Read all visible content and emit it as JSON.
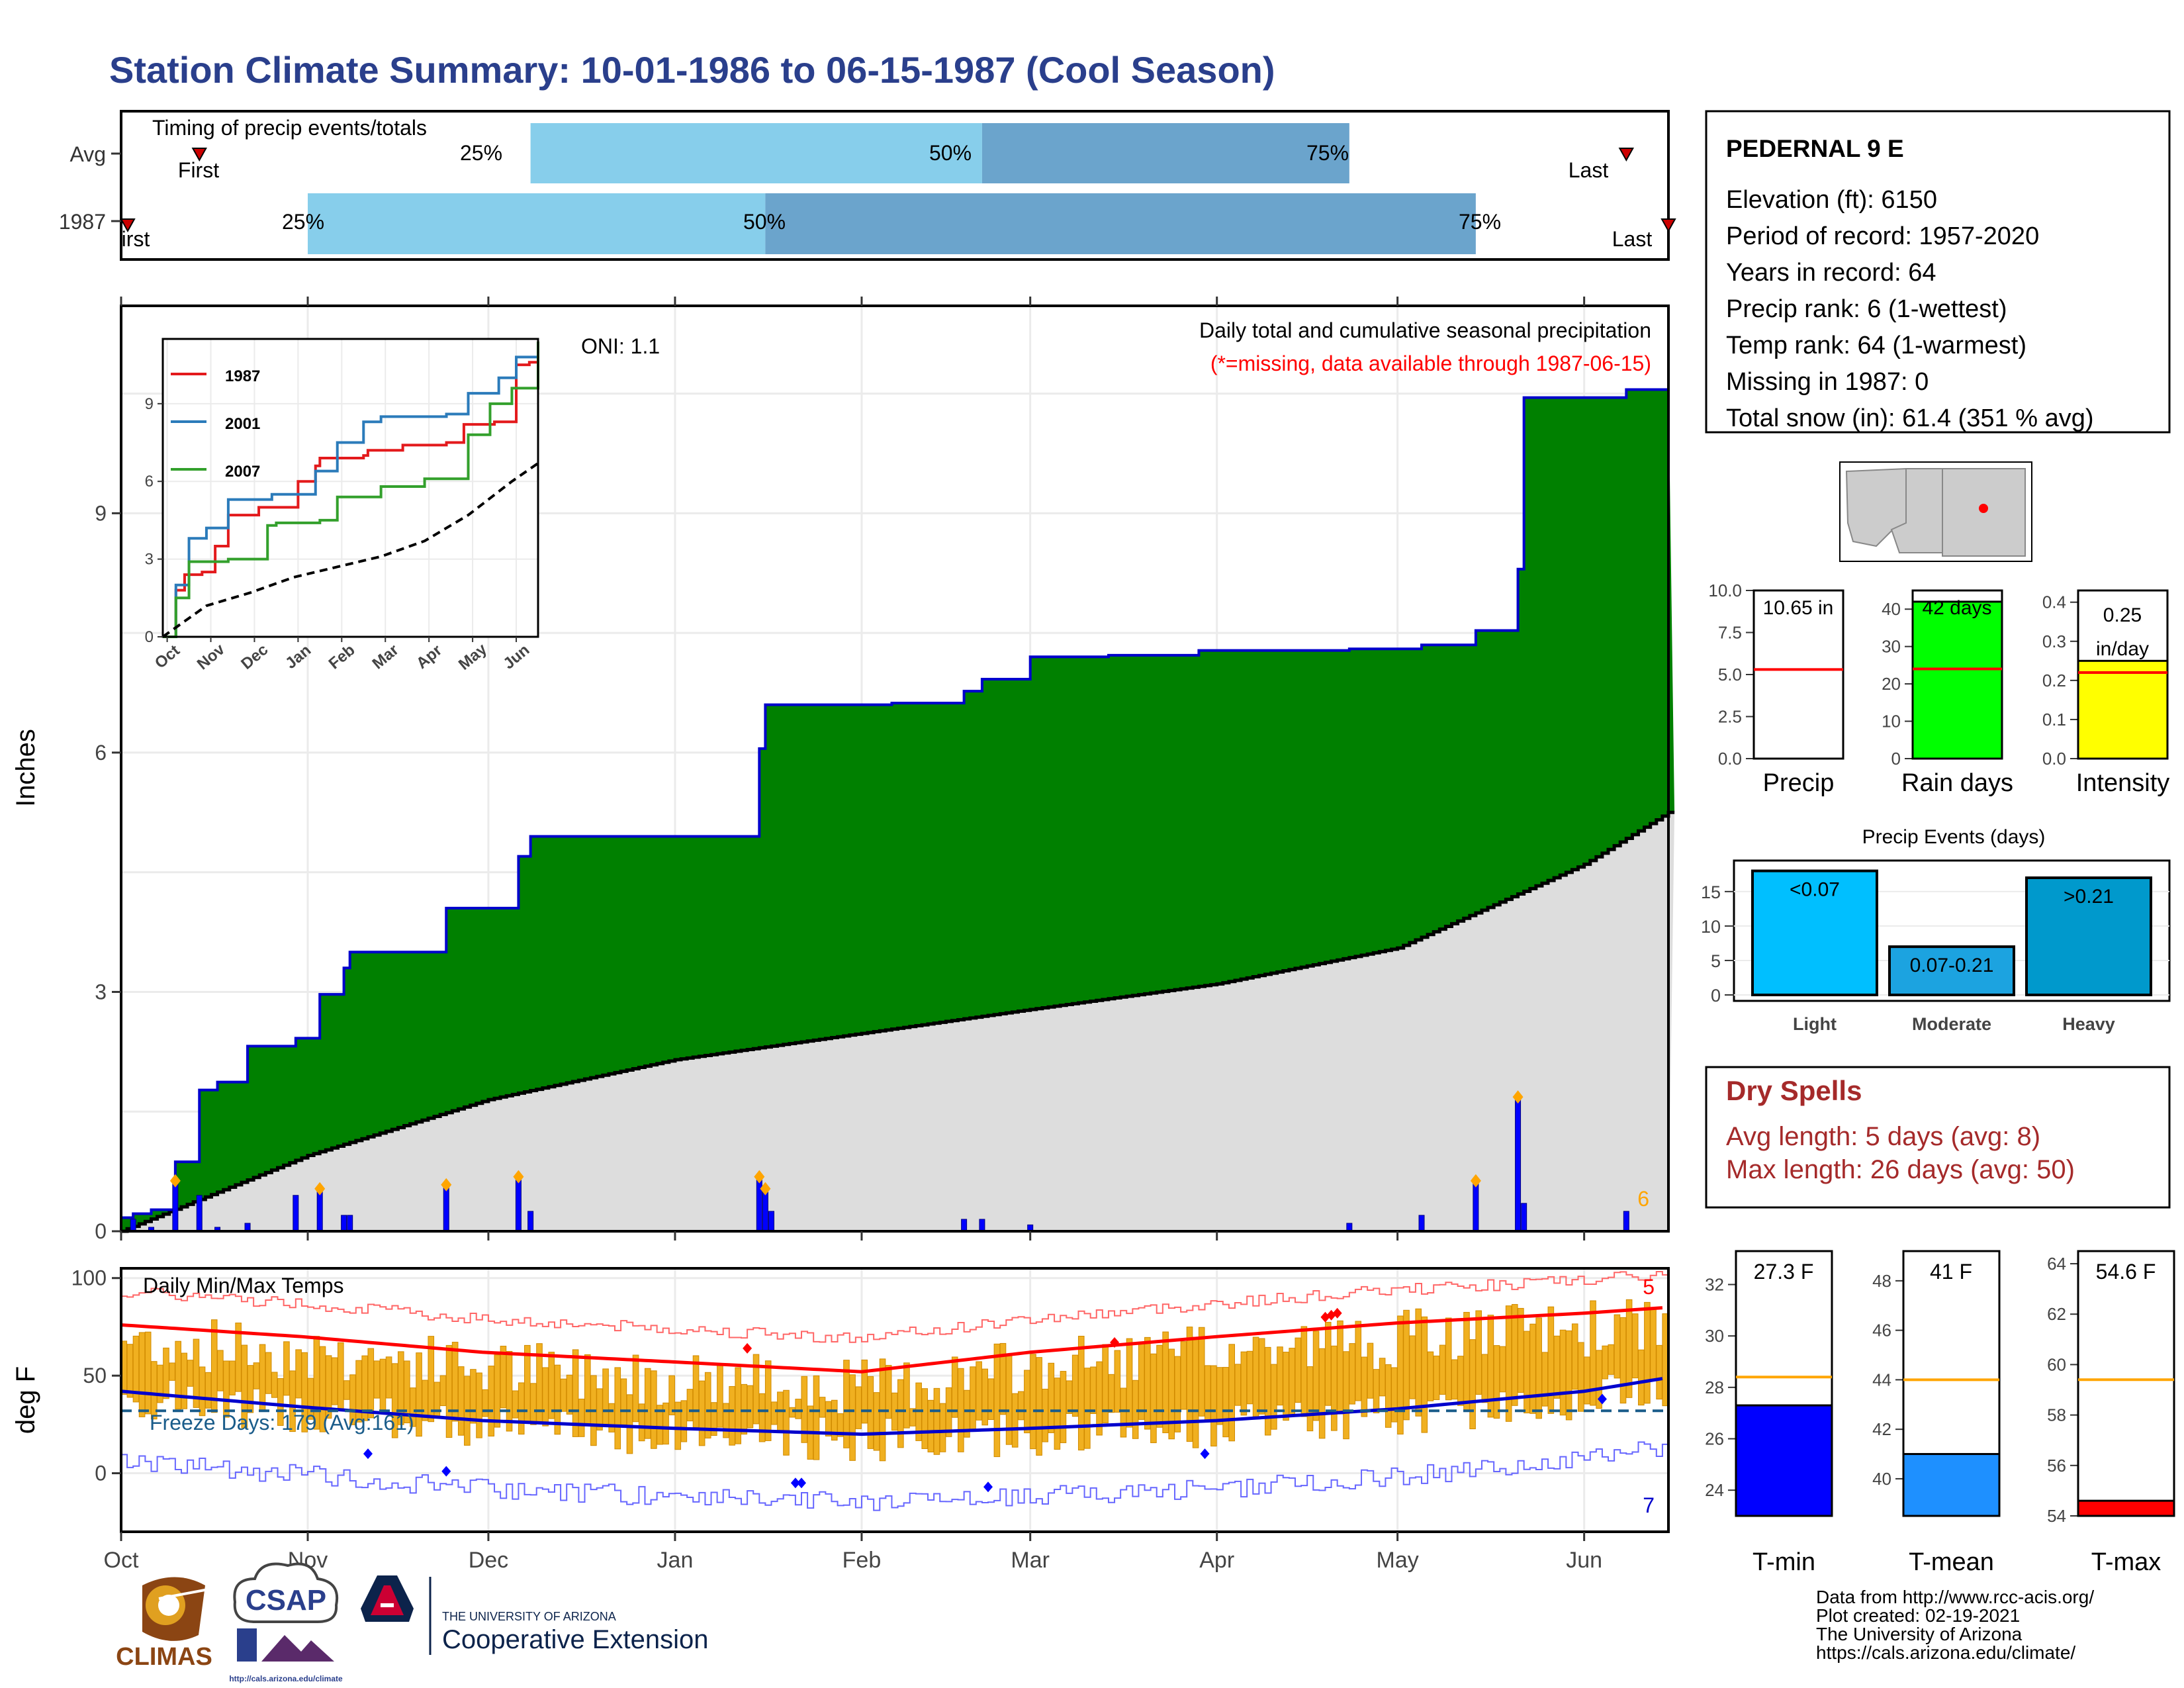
{
  "title": "Station Climate Summary: 10-01-1986 to 06-15-1987 (Cool Season)",
  "colors": {
    "title": "#2a3f8c",
    "green": "#008000",
    "blue_outline": "#0000cc",
    "climo_fill": "#dddddd",
    "light_blue": "#87ceeb",
    "steel_blue": "#6ba4cc",
    "orange_bar": "#f0b020",
    "dry_spell": "#a52a2a",
    "red": "#ff0000"
  },
  "timing": {
    "label": "Timing of precip events/totals",
    "row_labels": [
      "Avg",
      "1987"
    ],
    "avg": {
      "first_label": "First",
      "last_label": "Last",
      "first_date": "1986-10-14",
      "p25_date": "1986-12-08",
      "p50_date": "1987-02-21",
      "p75_date": "1987-04-23",
      "last_date": "1987-06-08"
    },
    "y1987": {
      "first_label": "irst",
      "last_label": "Last",
      "first_date": "1986-10-01",
      "p25_date": "1986-11-01",
      "p50_date": "1987-01-16",
      "p75_date": "1987-05-14",
      "last_date": "1987-06-15"
    },
    "pct_labels": [
      "25%",
      "50%",
      "75%"
    ]
  },
  "precip_panel": {
    "ylabel": "Inches",
    "oni_label": "ONI: 1.1",
    "caption1": "Daily total and cumulative seasonal precipitation",
    "caption2": "(*=missing, data available through 1987-06-15)",
    "corner_count": "6",
    "y_ticks": [
      "0",
      "3",
      "6",
      "9"
    ],
    "x_ticks": [
      "Oct",
      "Nov",
      "Dec",
      "Jan",
      "Feb",
      "Mar",
      "Apr",
      "May",
      "Jun"
    ]
  },
  "inset": {
    "legend": [
      "1987",
      "2001",
      "2007"
    ],
    "legend_colors": [
      "#e31a1c",
      "#2b7bba",
      "#33a02c"
    ],
    "y_ticks": [
      "0",
      "3",
      "6",
      "9"
    ],
    "x_ticks": [
      "Oct",
      "Nov",
      "Dec",
      "Jan",
      "Feb",
      "Mar",
      "Apr",
      "May",
      "Jun"
    ]
  },
  "temp_panel": {
    "ylabel": "deg F",
    "label": "Daily Min/Max Temps",
    "freeze": "Freeze Days: 179 (Avg:161)",
    "corner_top": "5",
    "corner_bottom": "7",
    "y_ticks": [
      "0",
      "50",
      "100"
    ],
    "x_ticks": [
      "Oct",
      "Nov",
      "Dec",
      "Jan",
      "Feb",
      "Mar",
      "Apr",
      "May",
      "Jun"
    ]
  },
  "station": {
    "name": "PEDERNAL 9 E",
    "lines": [
      "Elevation (ft): 6150",
      "Period of record: 1957-2020",
      "Years in record: 64",
      "Precip rank: 6 (1-wettest)",
      "Temp rank: 64 (1-warmest)",
      "Missing in 1987: 0",
      "Total snow (in): 61.4 (351 % avg)"
    ]
  },
  "mini_bars": [
    {
      "label": "Precip",
      "value_text": "10.65 in",
      "value": 10.65,
      "avg": 5.3,
      "ylim": [
        0,
        10.0
      ],
      "ticks": [
        "0.0",
        "2.5",
        "5.0",
        "7.5",
        "10.0"
      ],
      "tick_vals": [
        0,
        2.5,
        5,
        7.5,
        10
      ],
      "color": "#ffffff"
    },
    {
      "label": "Rain days",
      "value_text": "42 days",
      "value": 42,
      "avg": 24,
      "ylim": [
        0,
        45
      ],
      "ticks": [
        "0",
        "10",
        "20",
        "30",
        "40"
      ],
      "tick_vals": [
        0,
        10,
        20,
        30,
        40
      ],
      "color": "#00ff00"
    },
    {
      "label": "Intensity",
      "value_text": "0.25 in/day",
      "value_line1": "0.25",
      "value_line2": "in/day",
      "value": 0.25,
      "avg": 0.22,
      "ylim": [
        0,
        0.43
      ],
      "ticks": [
        "0.0",
        "0.1",
        "0.2",
        "0.3",
        "0.4"
      ],
      "tick_vals": [
        0,
        0.1,
        0.2,
        0.3,
        0.4
      ],
      "color": "#ffff00"
    }
  ],
  "events": {
    "title": "Precip Events (days)",
    "categories": [
      "Light",
      "Moderate",
      "Heavy"
    ],
    "bar_labels": [
      "<0.07",
      "0.07-0.21",
      ">0.21"
    ],
    "values": [
      18,
      7,
      17
    ],
    "colors": [
      "#00bfff",
      "#1ca3e0",
      "#0099cc"
    ],
    "ticks": [
      "0",
      "5",
      "10",
      "15"
    ]
  },
  "dry_spells": {
    "title": "Dry Spells",
    "avg_line": "Avg length: 5 days (avg: 8)",
    "max_line": "Max length: 26 days (avg: 50)"
  },
  "temp_bars": [
    {
      "label": "T-min",
      "value_text": "27.3 F",
      "value": 27.3,
      "avg": 28.4,
      "ylim": [
        23,
        33.3
      ],
      "ticks": [
        "24",
        "26",
        "28",
        "30",
        "32"
      ],
      "tick_vals": [
        24,
        26,
        28,
        30,
        32
      ],
      "color": "#0000ff"
    },
    {
      "label": "T-mean",
      "value_text": "41 F",
      "value": 41,
      "avg": 44,
      "ylim": [
        38.5,
        49.2
      ],
      "ticks": [
        "40",
        "42",
        "44",
        "46",
        "48"
      ],
      "tick_vals": [
        40,
        42,
        44,
        46,
        48
      ],
      "color": "#1e90ff"
    },
    {
      "label": "T-max",
      "value_text": "54.6 F",
      "value": 54.6,
      "avg": 59.4,
      "ylim": [
        54,
        64.5
      ],
      "ticks": [
        "54",
        "56",
        "58",
        "60",
        "62",
        "64"
      ],
      "tick_vals": [
        54,
        56,
        58,
        60,
        62,
        64
      ],
      "color": "#ff0000"
    }
  ],
  "footer": {
    "lines": [
      "Data from http://www.rcc-acis.org/",
      "Plot created: 02-19-2021",
      "The University of Arizona",
      "https://cals.arizona.edu/climate/"
    ]
  },
  "logos": {
    "climas": "CLIMAS",
    "csap": "CSAP",
    "csap_url": "http://cals.arizona.edu/climate",
    "ua_small": "THE UNIVERSITY OF ARIZONA",
    "ua_big": "Cooperative Extension"
  },
  "chart_data": [
    {
      "type": "area",
      "title": "Daily total and cumulative seasonal precipitation",
      "ylabel": "Inches",
      "ylim": [
        0,
        11.6
      ],
      "x_range": [
        "1986-10-01",
        "1987-06-15"
      ],
      "cumulative_1987": {
        "x": [
          "1986-10-01",
          "1986-10-03",
          "1986-10-06",
          "1986-10-10",
          "1986-10-14",
          "1986-10-17",
          "1986-10-22",
          "1986-10-30",
          "1986-11-03",
          "1986-11-07",
          "1986-11-08",
          "1986-11-24",
          "1986-12-06",
          "1986-12-08",
          "1987-01-15",
          "1987-01-16",
          "1987-02-06",
          "1987-02-18",
          "1987-02-21",
          "1987-03-01",
          "1987-03-14",
          "1987-03-29",
          "1987-04-23",
          "1987-05-05",
          "1987-05-14",
          "1987-05-21",
          "1987-05-22",
          "1987-06-08",
          "1987-06-15"
        ],
        "y": [
          0.17,
          0.22,
          0.27,
          0.87,
          1.77,
          1.87,
          2.32,
          2.42,
          2.97,
          3.3,
          3.5,
          4.05,
          4.7,
          4.95,
          6.05,
          6.6,
          6.62,
          6.77,
          6.92,
          7.2,
          7.22,
          7.28,
          7.3,
          7.35,
          7.53,
          8.3,
          10.45,
          10.55,
          10.65
        ]
      },
      "climatology_avg": {
        "x": [
          "1986-10-01",
          "1986-11-01",
          "1986-12-01",
          "1987-01-01",
          "1987-02-01",
          "1987-03-01",
          "1987-04-01",
          "1987-05-01",
          "1987-06-01",
          "1987-06-15"
        ],
        "y": [
          0.0,
          0.95,
          1.65,
          2.15,
          2.48,
          2.78,
          3.1,
          3.55,
          4.6,
          5.25
        ]
      },
      "daily_bars": {
        "x": [
          "1986-10-03",
          "1986-10-06",
          "1986-10-10",
          "1986-10-14",
          "1986-10-17",
          "1986-10-22",
          "1986-10-30",
          "1986-11-03",
          "1986-11-07",
          "1986-11-08",
          "1986-11-24",
          "1986-12-06",
          "1986-12-08",
          "1987-01-15",
          "1987-01-16",
          "1987-01-17",
          "1987-02-18",
          "1987-02-21",
          "1987-03-01",
          "1987-04-23",
          "1987-05-05",
          "1987-05-14",
          "1987-05-21",
          "1987-05-22",
          "1987-06-08"
        ],
        "y": [
          0.15,
          0.05,
          0.6,
          0.45,
          0.05,
          0.1,
          0.45,
          0.5,
          0.2,
          0.2,
          0.55,
          0.65,
          0.25,
          0.65,
          0.5,
          0.25,
          0.15,
          0.15,
          0.08,
          0.1,
          0.2,
          0.6,
          1.65,
          0.35,
          0.25
        ]
      }
    },
    {
      "type": "line",
      "title": "",
      "xlim": [
        "Oct",
        "Jun"
      ],
      "ylim": [
        0,
        11.5
      ],
      "series": [
        {
          "name": "1987",
          "x": [
            0,
            0.3,
            0.5,
            0.9,
            1.2,
            1.5,
            2.2,
            3.1,
            3.5,
            3.6,
            4.6,
            4.7,
            5.5,
            6.5,
            6.9,
            7.6,
            8.1,
            8.4,
            8.6
          ],
          "y": [
            0,
            1.8,
            2.4,
            2.5,
            3.5,
            4.7,
            5.0,
            6.0,
            6.6,
            6.9,
            7.0,
            7.2,
            7.4,
            7.5,
            8.2,
            8.3,
            10.5,
            10.6,
            10.6
          ]
        },
        {
          "name": "2001",
          "x": [
            0,
            0.3,
            0.6,
            1.0,
            1.5,
            2.5,
            3.5,
            4.0,
            4.6,
            5.0,
            6.5,
            7.0,
            7.7,
            8.1,
            8.6
          ],
          "y": [
            0,
            2.0,
            3.8,
            4.2,
            5.3,
            5.5,
            6.4,
            7.5,
            8.3,
            8.5,
            8.6,
            9.4,
            10.0,
            10.8,
            10.9
          ]
        },
        {
          "name": "2007",
          "x": [
            0,
            0.3,
            0.6,
            1.5,
            2.4,
            2.6,
            3.6,
            4.0,
            5.0,
            6.0,
            7.0,
            7.5,
            8.0,
            8.6
          ],
          "y": [
            0,
            1.5,
            2.9,
            3.0,
            4.3,
            4.4,
            4.5,
            5.4,
            5.8,
            6.1,
            7.8,
            9.0,
            9.6,
            11.4
          ]
        },
        {
          "name": "",
          "x": [
            0,
            1,
            2,
            3,
            4,
            5,
            6,
            7,
            8,
            8.6
          ],
          "y": [
            0,
            1.2,
            1.7,
            2.3,
            2.7,
            3.1,
            3.7,
            4.7,
            6.0,
            6.7
          ]
        }
      ]
    },
    {
      "type": "bar",
      "title": "Daily Min/Max Temps",
      "ylabel": "deg F",
      "ylim": [
        -30,
        105
      ],
      "x_range": [
        "1986-10-01",
        "1987-06-15"
      ],
      "series": [
        {
          "name": "",
          "x": [
            0,
            30,
            60,
            92,
            123,
            151,
            182,
            212,
            243,
            257
          ],
          "y": [
            76,
            70,
            62,
            57,
            52,
            62,
            70,
            77,
            82,
            85
          ]
        },
        {
          "name": "",
          "x": [
            0,
            30,
            60,
            92,
            123,
            151,
            182,
            212,
            243,
            257
          ],
          "y": [
            42,
            34,
            27,
            23,
            20,
            23,
            27,
            33,
            42,
            49
          ]
        },
        {
          "name": "",
          "x": [
            0,
            257
          ],
          "y": [
            32,
            32
          ]
        }
      ]
    }
  ]
}
